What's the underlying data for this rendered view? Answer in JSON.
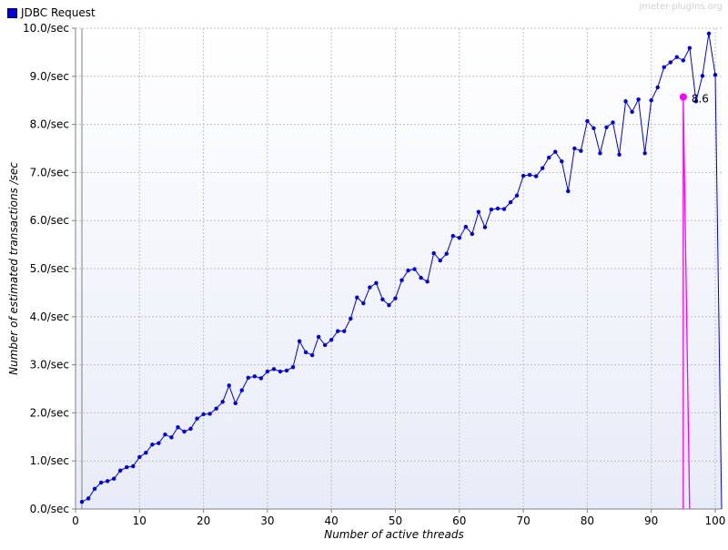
{
  "watermark": "jmeter-plugins.org",
  "colors": {
    "series": "#0000e0",
    "marker": "#ff00ff",
    "grid": "#c0c0c0",
    "plot_bg_top": "#ffffff",
    "plot_bg_bottom": "#e8ecf8"
  },
  "chart_data": {
    "type": "line",
    "title": "",
    "xlabel": "Number of active threads",
    "ylabel": "Number of estimated transactions /sec",
    "xlim": [
      0,
      101
    ],
    "ylim": [
      0,
      10
    ],
    "x_ticks": [
      "0",
      "10",
      "20",
      "30",
      "40",
      "50",
      "60",
      "70",
      "80",
      "90",
      "100"
    ],
    "y_ticks": [
      "0.0/sec",
      "1.0/sec",
      "2.0/sec",
      "3.0/sec",
      "4.0/sec",
      "5.0/sec",
      "6.0/sec",
      "7.0/sec",
      "8.0/sec",
      "9.0/sec",
      "10.0/sec"
    ],
    "grid": true,
    "legend": "top-left",
    "series": [
      {
        "name": "JDBC Request",
        "color": "#0000e0",
        "x": [
          1,
          2,
          3,
          4,
          5,
          6,
          7,
          8,
          9,
          10,
          11,
          12,
          13,
          14,
          15,
          16,
          17,
          18,
          19,
          20,
          21,
          22,
          23,
          24,
          25,
          26,
          27,
          28,
          29,
          30,
          31,
          32,
          33,
          34,
          35,
          36,
          37,
          38,
          39,
          40,
          41,
          42,
          43,
          44,
          45,
          46,
          47,
          48,
          49,
          50,
          51,
          52,
          53,
          54,
          55,
          56,
          57,
          58,
          59,
          60,
          61,
          62,
          63,
          64,
          65,
          66,
          67,
          68,
          69,
          70,
          71,
          72,
          73,
          74,
          75,
          76,
          77,
          78,
          79,
          80,
          81,
          82,
          83,
          84,
          85,
          86,
          87,
          88,
          89,
          90,
          91,
          92,
          93,
          94,
          95,
          96,
          97,
          98,
          99,
          100,
          101
        ],
        "y": [
          0.15,
          0.22,
          0.42,
          0.55,
          0.58,
          0.63,
          0.8,
          0.87,
          0.89,
          1.08,
          1.17,
          1.34,
          1.37,
          1.55,
          1.49,
          1.7,
          1.61,
          1.67,
          1.88,
          1.97,
          1.98,
          2.09,
          2.23,
          2.57,
          2.2,
          2.47,
          2.73,
          2.76,
          2.72,
          2.86,
          2.91,
          2.86,
          2.88,
          2.95,
          3.49,
          3.26,
          3.2,
          3.58,
          3.41,
          3.52,
          3.7,
          3.7,
          3.96,
          4.4,
          4.28,
          4.61,
          4.7,
          4.36,
          4.24,
          4.38,
          4.76,
          4.96,
          4.99,
          4.81,
          4.73,
          5.32,
          5.17,
          5.31,
          5.68,
          5.64,
          5.87,
          5.72,
          6.18,
          5.86,
          6.23,
          6.25,
          6.24,
          6.38,
          6.52,
          6.93,
          6.95,
          6.92,
          7.09,
          7.31,
          7.43,
          7.23,
          6.61,
          7.5,
          7.45,
          8.07,
          7.92,
          7.4,
          7.94,
          8.04,
          7.37,
          8.48,
          8.26,
          8.52,
          7.4,
          8.5,
          8.77,
          9.19,
          9.29,
          9.4,
          9.33,
          9.59,
          8.48,
          9.01,
          9.89,
          9.03,
          0.0
        ]
      }
    ],
    "annotation": {
      "x": 95,
      "y": 8.57,
      "label": "8.6",
      "color": "#ff00ff",
      "drop_x_end": 96
    }
  }
}
